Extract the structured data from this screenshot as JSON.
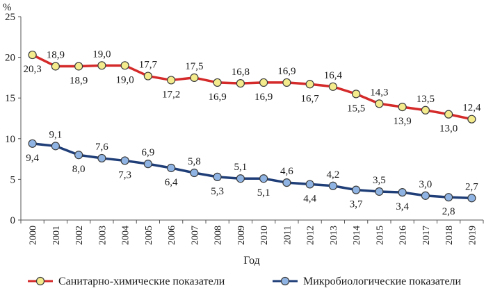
{
  "chart_data": {
    "type": "line",
    "title": "",
    "ylabel": "%",
    "xlabel": "Год",
    "ylim": [
      0,
      25
    ],
    "yticks": [
      0,
      5,
      10,
      15,
      20,
      25
    ],
    "grid": false,
    "legend_position": "bottom",
    "categories": [
      "2000",
      "2001",
      "2002",
      "2003",
      "2004",
      "2005",
      "2006",
      "2007",
      "2008",
      "2009",
      "2010",
      "2011",
      "2012",
      "2013",
      "2014",
      "2015",
      "2016",
      "2017",
      "2018",
      "2019"
    ],
    "series": [
      {
        "name": "Санитарно-химические показатели",
        "line_color": "#d42a2a",
        "marker_color": "#f3eb8c",
        "values": [
          20.3,
          18.9,
          18.9,
          19.0,
          19.0,
          17.7,
          17.2,
          17.5,
          16.9,
          16.8,
          16.9,
          16.9,
          16.7,
          16.4,
          15.5,
          14.3,
          13.9,
          13.5,
          13.0,
          12.4
        ],
        "labels": [
          "20,3",
          "18,9",
          "18,9",
          "19,0",
          "19,0",
          "17,7",
          "17,2",
          "17,5",
          "16,9",
          "16,8",
          "16,9",
          "16,9",
          "16,7",
          "16,4",
          "15,5",
          "14,3",
          "13,9",
          "13,5",
          "13,0",
          "12,4"
        ],
        "label_positions": [
          "below",
          "above",
          "below",
          "above",
          "below",
          "above",
          "below",
          "above",
          "below",
          "above",
          "below",
          "above",
          "below",
          "above",
          "below",
          "above",
          "below",
          "above",
          "below",
          "above"
        ]
      },
      {
        "name": "Микробиологические показатели",
        "line_color": "#1f3e78",
        "marker_color": "#8fb4e3",
        "values": [
          9.4,
          9.1,
          8.0,
          7.6,
          7.3,
          6.9,
          6.4,
          5.8,
          5.3,
          5.1,
          5.1,
          4.6,
          4.4,
          4.2,
          3.7,
          3.5,
          3.4,
          3.0,
          2.8,
          2.7
        ],
        "labels": [
          "9,4",
          "9,1",
          "8,0",
          "7,6",
          "7,3",
          "6,9",
          "6,4",
          "5,8",
          "5,3",
          "5,1",
          "5,1",
          "4,6",
          "4,4",
          "4,2",
          "3,7",
          "3,5",
          "3,4",
          "3,0",
          "2,8",
          "2,7"
        ],
        "label_positions": [
          "below",
          "above",
          "below",
          "above",
          "below",
          "above",
          "below",
          "above",
          "below",
          "above",
          "below",
          "above",
          "below",
          "above",
          "below",
          "above",
          "below",
          "above",
          "below",
          "above"
        ]
      }
    ]
  }
}
